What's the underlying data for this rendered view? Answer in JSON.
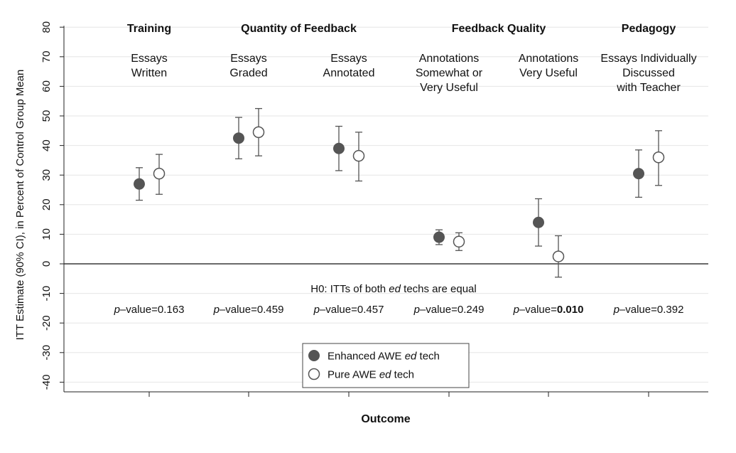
{
  "chart_data": {
    "type": "scatter",
    "ylabel": "ITT Estimate (90% CI), in Percent of Control Group Mean",
    "xlabel": "Outcome",
    "ylim": [
      -40,
      80
    ],
    "yticks": [
      -40,
      -30,
      -20,
      -10,
      0,
      10,
      20,
      30,
      40,
      50,
      60,
      70,
      80
    ],
    "grid": true,
    "groups": [
      "Training",
      "Quantity of Feedback",
      "Feedback Quality",
      "Pedagogy"
    ],
    "categories": [
      "Essays Written",
      "Essays Graded",
      "Essays Annotated",
      "Annotations Somewhat or Very Useful",
      "Annotations Very Useful",
      "Essays Individually Discussed with Teacher"
    ],
    "category_lines": [
      [
        "Essays",
        "Written"
      ],
      [
        "Essays",
        "Graded"
      ],
      [
        "Essays",
        "Annotated"
      ],
      [
        "Annotations",
        "Somewhat or",
        "Very Useful"
      ],
      [
        "Annotations",
        "Very Useful"
      ],
      [
        "Essays Individually",
        "Discussed",
        "with Teacher"
      ]
    ],
    "series": [
      {
        "name": "Enhanced AWE ed tech",
        "marker": "filled",
        "values": [
          27,
          42.5,
          39,
          9,
          14,
          30.5
        ],
        "ci_low": [
          21.5,
          35.5,
          31.5,
          6.5,
          6,
          22.5
        ],
        "ci_high": [
          32.5,
          49.5,
          46.5,
          11.5,
          22,
          38.5
        ]
      },
      {
        "name": "Pure AWE ed tech",
        "marker": "hollow",
        "values": [
          30.5,
          44.5,
          36.5,
          7.5,
          2.5,
          36
        ],
        "ci_low": [
          23.5,
          36.5,
          28,
          4.5,
          -4.5,
          26.5
        ],
        "ci_high": [
          37,
          52.5,
          44.5,
          10.5,
          9.5,
          45
        ]
      }
    ],
    "h0_text": "H0: ITTs of both ed techs are equal",
    "pvalue_label": "p–value=",
    "pvalues": [
      "0.163",
      "0.459",
      "0.457",
      "0.249",
      "0.010",
      "0.392"
    ],
    "pvalue_bold": [
      false,
      false,
      false,
      false,
      true,
      false
    ],
    "legend": {
      "placement": "bottom-center",
      "entries": [
        "Enhanced AWE ed tech",
        "Pure AWE ed tech"
      ]
    },
    "colors": {
      "filled_marker": "#555555",
      "ci_line": "#555555",
      "grid": "#e6e6e6"
    }
  }
}
